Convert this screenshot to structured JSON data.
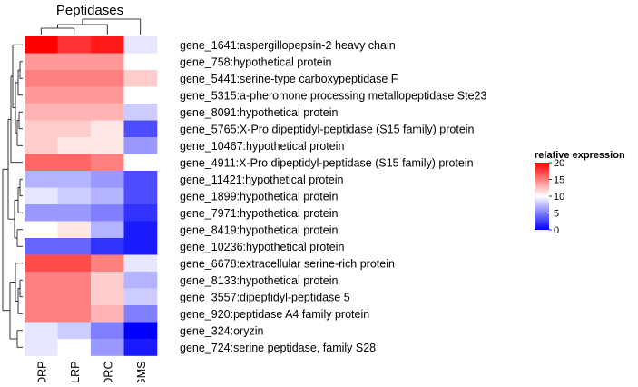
{
  "chart_data": {
    "type": "heatmap",
    "title": "Peptidases",
    "columns": [
      "DRP",
      "LRP",
      "DRC",
      "GMS"
    ],
    "rows": [
      "gene_1641:aspergillopepsin-2 heavy chain",
      "gene_758:hypothetical protein",
      "gene_5441:serine-type carboxypeptidase F",
      "gene_5315:a-pheromone processing metallopeptidase Ste23",
      "gene_8091:hypothetical protein",
      "gene_5765:X-Pro dipeptidyl-peptidase (S15 family) protein",
      "gene_10467:hypothetical protein",
      "gene_4911:X-Pro dipeptidyl-peptidase (S15 family) protein",
      "gene_11421:hypothetical protein",
      "gene_1899:hypothetical protein",
      "gene_7971:hypothetical protein",
      "gene_8419:hypothetical protein",
      "gene_10236:hypothetical protein",
      "gene_6678:extracellular serine-rich protein",
      "gene_8133:hypothetical protein",
      "gene_3557:dipeptidyl-peptidase 5",
      "gene_920:peptidase A4 family protein",
      "gene_324:oryzin",
      "gene_724:serine peptidase, family S28"
    ],
    "values": [
      [
        20,
        18,
        19,
        9
      ],
      [
        14,
        14,
        14,
        10
      ],
      [
        15,
        15,
        15,
        12
      ],
      [
        14,
        14,
        14,
        10
      ],
      [
        13,
        13,
        13,
        8
      ],
      [
        12,
        12,
        11,
        3
      ],
      [
        12,
        11,
        11,
        6
      ],
      [
        16,
        16,
        15,
        10
      ],
      [
        7,
        7,
        6,
        3
      ],
      [
        9,
        8,
        7,
        3
      ],
      [
        6,
        6,
        5,
        2
      ],
      [
        10,
        11,
        7,
        1
      ],
      [
        4,
        4,
        2,
        1
      ],
      [
        17,
        17,
        15,
        9
      ],
      [
        15,
        15,
        12,
        7
      ],
      [
        15,
        15,
        12,
        8
      ],
      [
        15,
        15,
        13,
        5
      ],
      [
        9,
        8,
        5,
        0
      ],
      [
        9,
        10,
        6,
        1
      ]
    ],
    "legend": {
      "title": "relative expression",
      "ticks": [
        0,
        5,
        10,
        15,
        20
      ],
      "range": [
        0,
        20
      ],
      "colors": [
        "#0000ff",
        "#ffffff",
        "#ff0000"
      ],
      "position": "right"
    },
    "dendrograms": {
      "rows": true,
      "columns": true
    }
  }
}
